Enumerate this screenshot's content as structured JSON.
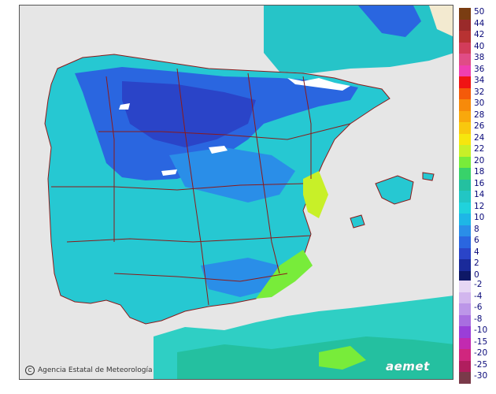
{
  "credit": "Agencia Estatal de Meteorología",
  "logo": "aemet",
  "legend": {
    "positive": [
      {
        "label": "50",
        "color": "#7a3d12"
      },
      {
        "label": "44",
        "color": "#9a2a2a"
      },
      {
        "label": "42",
        "color": "#b83232"
      },
      {
        "label": "40",
        "color": "#d23c5a"
      },
      {
        "label": "38",
        "color": "#e04c86"
      },
      {
        "label": "36",
        "color": "#ef3fb0"
      },
      {
        "label": "34",
        "color": "#f01414"
      },
      {
        "label": "32",
        "color": "#f45a0a"
      },
      {
        "label": "30",
        "color": "#f78a0a"
      },
      {
        "label": "28",
        "color": "#f9a80c"
      },
      {
        "label": "26",
        "color": "#f9c80e"
      },
      {
        "label": "24",
        "color": "#f6e60e"
      },
      {
        "label": "22",
        "color": "#c8f028"
      },
      {
        "label": "20",
        "color": "#78ec3a"
      },
      {
        "label": "18",
        "color": "#38d26a"
      },
      {
        "label": "16",
        "color": "#24c0a0"
      },
      {
        "label": "14",
        "color": "#22c6c4"
      },
      {
        "label": "12",
        "color": "#20d2dc"
      },
      {
        "label": "10",
        "color": "#1eb6e6"
      },
      {
        "label": "8",
        "color": "#2a8ee8"
      },
      {
        "label": "6",
        "color": "#2a66e0"
      },
      {
        "label": "4",
        "color": "#2a44c8"
      },
      {
        "label": "2",
        "color": "#1a2a9a"
      },
      {
        "label": "0",
        "color": "#0e1866"
      }
    ],
    "negative": [
      {
        "label": "-2",
        "color": "#e6d6f4"
      },
      {
        "label": "-4",
        "color": "#d2b6ee"
      },
      {
        "label": "-6",
        "color": "#bc96e8"
      },
      {
        "label": "-8",
        "color": "#a86ee0"
      },
      {
        "label": "-10",
        "color": "#9a3ed8"
      },
      {
        "label": "-15",
        "color": "#c22ab0"
      },
      {
        "label": "-20",
        "color": "#d0267e"
      },
      {
        "label": "-25",
        "color": "#b01e5e"
      },
      {
        "label": "-30",
        "color": "#7a3a4a"
      }
    ]
  },
  "colors": {
    "background": "#e6e6e6",
    "sea": "#2fcfc4",
    "land_base": "#26c8d2",
    "border": "#8b1a1a",
    "africa_land": "#f0e8c8"
  }
}
